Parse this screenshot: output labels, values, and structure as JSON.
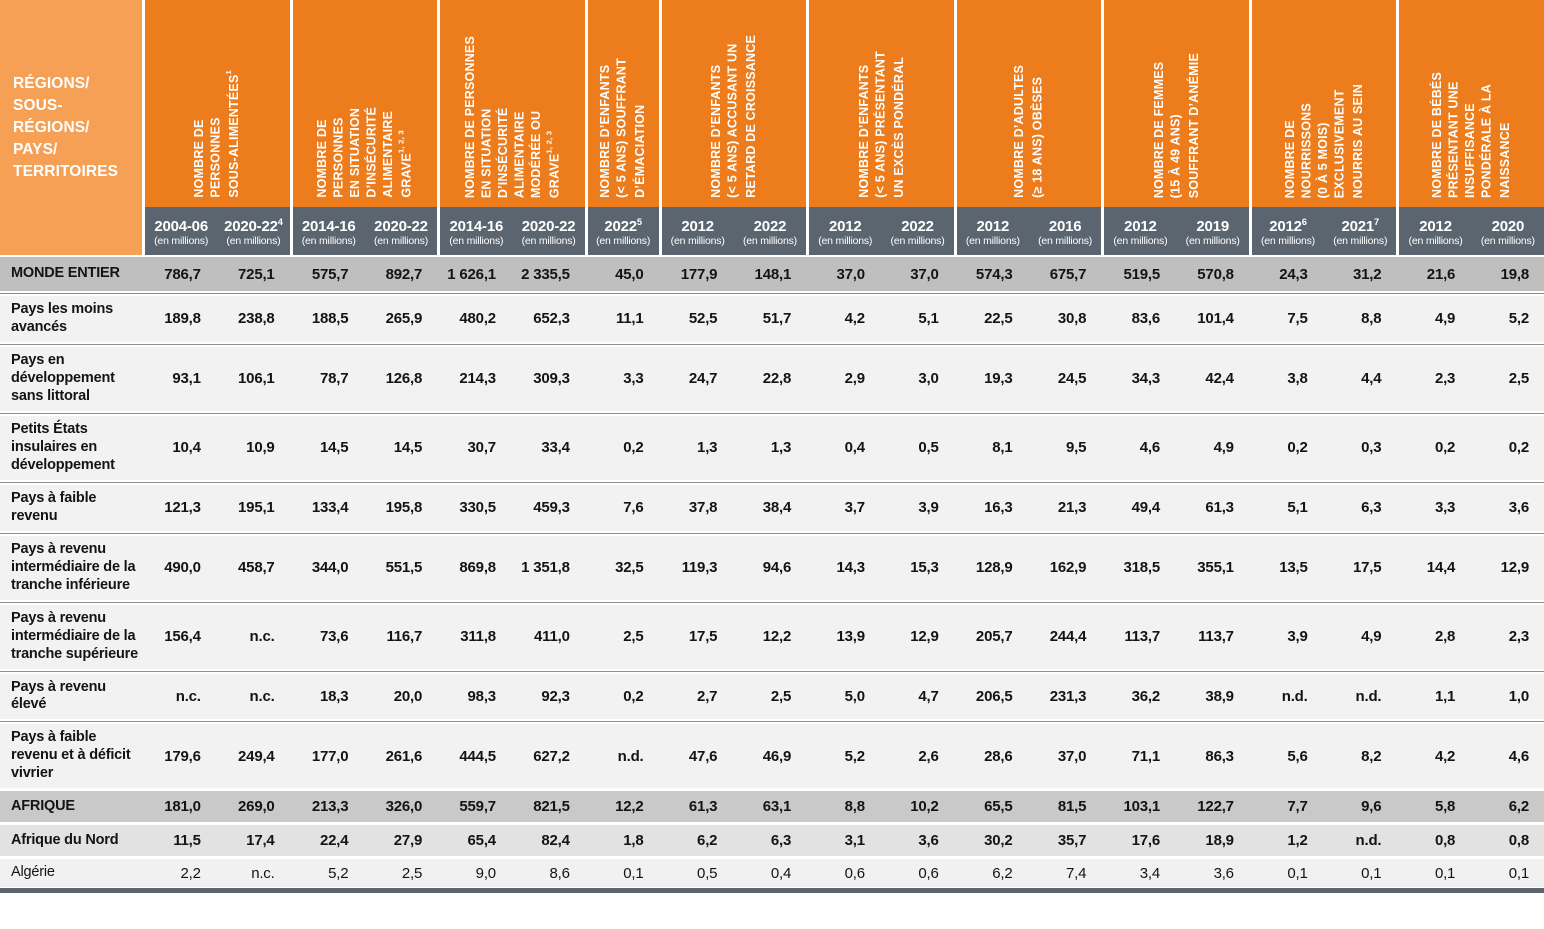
{
  "colors": {
    "header_orange": "#ED7D1C",
    "header_orange_light": "#F5A055",
    "year_band_slate": "#5B6570",
    "row_world_gray": "#BFBFBF",
    "row_light_gray": "#F2F2F2",
    "row_region_gray": "#C9C9C9",
    "row_subregion_gray": "#E2E2E2",
    "row_country_gray": "#F1F1F1",
    "separator_line": "#8F8F8F"
  },
  "table": {
    "corner_label": "RÉGIONS/\nSOUS-\nRÉGIONS/\nPAYS/\nTERRITOIRES",
    "unit_label": "(en millions)",
    "groups": [
      {
        "title": "NOMBRE DE\nPERSONNES\nSOUS-ALIMENTÉES",
        "sup": "1",
        "years": [
          {
            "y": "2004-06",
            "sup": ""
          },
          {
            "y": "2020-22",
            "sup": "4"
          }
        ]
      },
      {
        "title": "NOMBRE DE\nPERSONNES\nEN SITUATION\nD’INSÉCURITÉ\nALIMENTAIRE\nGRAVE",
        "sup": "1, 2, 3",
        "years": [
          {
            "y": "2014-16",
            "sup": ""
          },
          {
            "y": "2020-22",
            "sup": ""
          }
        ]
      },
      {
        "title": "NOMBRE DE PERSONNES\nEN SITUATION\nD’INSÉCURITÉ\nALIMENTAIRE\nMODÉRÉE OU\nGRAVE",
        "sup": "1, 2, 3",
        "years": [
          {
            "y": "2014-16",
            "sup": ""
          },
          {
            "y": "2020-22",
            "sup": ""
          }
        ]
      },
      {
        "title": "NOMBRE D’ENFANTS\n(< 5 ANS) SOUFFRANT\nD’ÉMACIATION",
        "sup": "",
        "years": [
          {
            "y": "2022",
            "sup": "5"
          }
        ]
      },
      {
        "title": "NOMBRE D’ENFANTS\n(< 5 ANS) ACCUSANT UN\nRETARD DE CROISSANCE",
        "sup": "",
        "years": [
          {
            "y": "2012",
            "sup": ""
          },
          {
            "y": "2022",
            "sup": ""
          }
        ]
      },
      {
        "title": "NOMBRE D’ENFANTS\n(< 5 ANS) PRÉSENTANT\nUN EXCÈS PONDÉRAL",
        "sup": "",
        "years": [
          {
            "y": "2012",
            "sup": ""
          },
          {
            "y": "2022",
            "sup": ""
          }
        ]
      },
      {
        "title": "NOMBRE D’ADULTES\n(≥ 18 ANS) OBÈSES",
        "sup": "",
        "years": [
          {
            "y": "2012",
            "sup": ""
          },
          {
            "y": "2016",
            "sup": ""
          }
        ]
      },
      {
        "title": "NOMBRE DE FEMMES\n(15 À 49 ANS)\nSOUFFRANT D’ANÉMIE",
        "sup": "",
        "years": [
          {
            "y": "2012",
            "sup": ""
          },
          {
            "y": "2019",
            "sup": ""
          }
        ]
      },
      {
        "title": "NOMBRE DE\nNOURRISSONS\n(0 À 5 MOIS)\nEXCLUSIVEMENT\nNOURRIS AU SEIN",
        "sup": "",
        "years": [
          {
            "y": "2012",
            "sup": "6"
          },
          {
            "y": "2021",
            "sup": "7"
          }
        ]
      },
      {
        "title": "NOMBRE DE BÉBÉS\nPRÉSENTANT UNE\nINSUFFISANCE\nPONDÉRALE À LA\nNAISSANCE",
        "sup": "",
        "years": [
          {
            "y": "2012",
            "sup": ""
          },
          {
            "y": "2020",
            "sup": ""
          }
        ]
      }
    ],
    "rows": [
      {
        "label": "MONDE ENTIER",
        "style": "r-world",
        "sep": "",
        "values": [
          "786,7",
          "725,1",
          "575,7",
          "892,7",
          "1 626,1",
          "2 335,5",
          "45,0",
          "177,9",
          "148,1",
          "37,0",
          "37,0",
          "574,3",
          "675,7",
          "519,5",
          "570,8",
          "24,3",
          "31,2",
          "21,6",
          "19,8"
        ]
      },
      {
        "label": "Pays les moins avancés",
        "style": "r-light",
        "sep": "line",
        "values": [
          "189,8",
          "238,8",
          "188,5",
          "265,9",
          "480,2",
          "652,3",
          "11,1",
          "52,5",
          "51,7",
          "4,2",
          "5,1",
          "22,5",
          "30,8",
          "83,6",
          "101,4",
          "7,5",
          "8,8",
          "4,9",
          "5,2"
        ]
      },
      {
        "label": "Pays en développement sans littoral",
        "style": "r-light",
        "sep": "line",
        "values": [
          "93,1",
          "106,1",
          "78,7",
          "126,8",
          "214,3",
          "309,3",
          "3,3",
          "24,7",
          "22,8",
          "2,9",
          "3,0",
          "19,3",
          "24,5",
          "34,3",
          "42,4",
          "3,8",
          "4,4",
          "2,3",
          "2,5"
        ]
      },
      {
        "label": "Petits États insulaires en développement",
        "style": "r-light",
        "sep": "line",
        "values": [
          "10,4",
          "10,9",
          "14,5",
          "14,5",
          "30,7",
          "33,4",
          "0,2",
          "1,3",
          "1,3",
          "0,4",
          "0,5",
          "8,1",
          "9,5",
          "4,6",
          "4,9",
          "0,2",
          "0,3",
          "0,2",
          "0,2"
        ]
      },
      {
        "label": "Pays à faible revenu",
        "style": "r-light",
        "sep": "line",
        "values": [
          "121,3",
          "195,1",
          "133,4",
          "195,8",
          "330,5",
          "459,3",
          "7,6",
          "37,8",
          "38,4",
          "3,7",
          "3,9",
          "16,3",
          "21,3",
          "49,4",
          "61,3",
          "5,1",
          "6,3",
          "3,3",
          "3,6"
        ]
      },
      {
        "label": "Pays à revenu intermédiaire de la tranche inférieure",
        "style": "r-light",
        "sep": "line",
        "values": [
          "490,0",
          "458,7",
          "344,0",
          "551,5",
          "869,8",
          "1 351,8",
          "32,5",
          "119,3",
          "94,6",
          "14,3",
          "15,3",
          "128,9",
          "162,9",
          "318,5",
          "355,1",
          "13,5",
          "17,5",
          "14,4",
          "12,9"
        ]
      },
      {
        "label": "Pays à revenu intermédiaire de la tranche supérieure",
        "style": "r-light",
        "sep": "line",
        "values": [
          "156,4",
          "n.c.",
          "73,6",
          "116,7",
          "311,8",
          "411,0",
          "2,5",
          "17,5",
          "12,2",
          "13,9",
          "12,9",
          "205,7",
          "244,4",
          "113,7",
          "113,7",
          "3,9",
          "4,9",
          "2,8",
          "2,3"
        ]
      },
      {
        "label": "Pays à revenu élevé",
        "style": "r-light",
        "sep": "line",
        "values": [
          "n.c.",
          "n.c.",
          "18,3",
          "20,0",
          "98,3",
          "92,3",
          "0,2",
          "2,7",
          "2,5",
          "5,0",
          "4,7",
          "206,5",
          "231,3",
          "36,2",
          "38,9",
          "n.d.",
          "n.d.",
          "1,1",
          "1,0"
        ]
      },
      {
        "label": "Pays à faible revenu et à déficit vivrier",
        "style": "r-light",
        "sep": "line",
        "values": [
          "179,6",
          "249,4",
          "177,0",
          "261,6",
          "444,5",
          "627,2",
          "n.d.",
          "47,6",
          "46,9",
          "5,2",
          "2,6",
          "28,6",
          "37,0",
          "71,1",
          "86,3",
          "5,6",
          "8,2",
          "4,2",
          "4,6"
        ]
      },
      {
        "label": "AFRIQUE",
        "style": "r-region",
        "sep": "plain",
        "values": [
          "181,0",
          "269,0",
          "213,3",
          "326,0",
          "559,7",
          "821,5",
          "12,2",
          "61,3",
          "63,1",
          "8,8",
          "10,2",
          "65,5",
          "81,5",
          "103,1",
          "122,7",
          "7,7",
          "9,6",
          "5,8",
          "6,2"
        ]
      },
      {
        "label": "Afrique du Nord",
        "style": "r-subregion",
        "sep": "plain",
        "values": [
          "11,5",
          "17,4",
          "22,4",
          "27,9",
          "65,4",
          "82,4",
          "1,8",
          "6,2",
          "6,3",
          "3,1",
          "3,6",
          "30,2",
          "35,7",
          "17,6",
          "18,9",
          "1,2",
          "n.d.",
          "0,8",
          "0,8"
        ]
      },
      {
        "label": "Algérie",
        "style": "r-country",
        "sep": "plain",
        "values": [
          "2,2",
          "n.c.",
          "5,2",
          "2,5",
          "9,0",
          "8,6",
          "0,1",
          "0,5",
          "0,4",
          "0,6",
          "0,6",
          "6,2",
          "7,4",
          "3,4",
          "3,6",
          "0,1",
          "0,1",
          "0,1",
          "0,1"
        ]
      }
    ]
  }
}
